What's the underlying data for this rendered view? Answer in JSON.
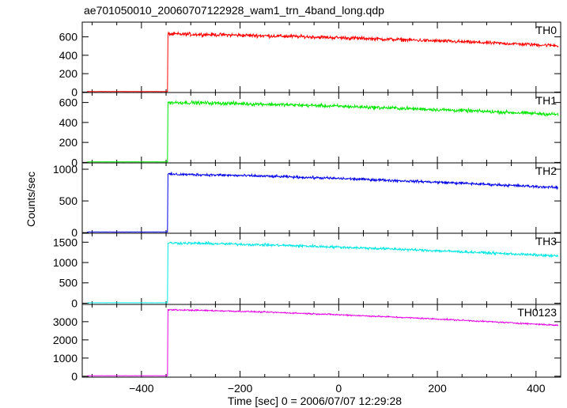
{
  "title": "ae701050010_20060707122928_wam1_trn_4band_long.qdp",
  "chart_data": {
    "type": "line",
    "title": "ae701050010_20060707122928_wam1_trn_4band_long.qdp",
    "xlabel": "Time [sec] 0 = 2006/07/07 12:29:28",
    "ylabel": "Counts/sec",
    "xlim": [
      -520,
      450
    ],
    "xticks": [
      -400,
      -200,
      0,
      200,
      400
    ],
    "x_tick_labels": [
      "−400",
      "−200",
      "0",
      "200",
      "400"
    ],
    "grid": false,
    "panels": [
      {
        "name": "TH0",
        "color": "#ff0000",
        "ylim": [
          -5,
          760
        ],
        "yticks": [
          0,
          200,
          400,
          600
        ],
        "y_tick_labels": [
          "0",
          "200",
          "400",
          "600"
        ],
        "x_start": -510,
        "x_end": 445,
        "trigger_x": -347,
        "pre_level": 5,
        "peak_level": 630,
        "end_level": 505,
        "noise": 28
      },
      {
        "name": "TH1",
        "color": "#00e600",
        "ylim": [
          -5,
          700
        ],
        "yticks": [
          0,
          200,
          400,
          600
        ],
        "y_tick_labels": [
          "0",
          "200",
          "400",
          "600"
        ],
        "x_start": -510,
        "x_end": 445,
        "trigger_x": -347,
        "pre_level": 5,
        "peak_level": 600,
        "end_level": 480,
        "noise": 26
      },
      {
        "name": "TH2",
        "color": "#0000e6",
        "ylim": [
          -10,
          1100
        ],
        "yticks": [
          0,
          500,
          1000
        ],
        "y_tick_labels": [
          "0",
          "500",
          "1000"
        ],
        "x_start": -510,
        "x_end": 445,
        "trigger_x": -347,
        "pre_level": 10,
        "peak_level": 920,
        "end_level": 710,
        "noise": 30
      },
      {
        "name": "TH3",
        "color": "#00e6e6",
        "ylim": [
          -30,
          1720
        ],
        "yticks": [
          0,
          500,
          1000,
          1500
        ],
        "y_tick_labels": [
          "0",
          "500",
          "1000",
          "1500"
        ],
        "x_start": -510,
        "x_end": 445,
        "trigger_x": -347,
        "pre_level": 10,
        "peak_level": 1480,
        "end_level": 1160,
        "noise": 45
      },
      {
        "name": "TH0123",
        "color": "#e600e6",
        "ylim": [
          -50,
          3950
        ],
        "yticks": [
          0,
          1000,
          2000,
          3000
        ],
        "y_tick_labels": [
          "0",
          "1000",
          "2000",
          "3000"
        ],
        "x_start": -510,
        "x_end": 445,
        "trigger_x": -347,
        "pre_level": 30,
        "peak_level": 3650,
        "end_level": 2800,
        "noise": 55
      }
    ]
  }
}
